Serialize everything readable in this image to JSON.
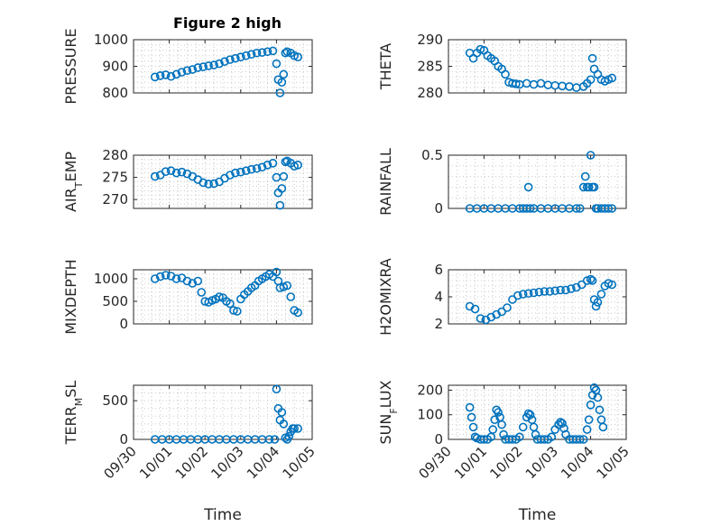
{
  "figure_title": "Figure 2 high",
  "colors": {
    "marker": "#0072BD",
    "axis": "#262626",
    "grid": "#c8c8c8"
  },
  "x_axis": {
    "label": "Time",
    "ticks": [
      "09/30",
      "10/01",
      "10/02",
      "10/03",
      "10/04",
      "10/05"
    ],
    "range_days": [
      0,
      5
    ],
    "tick_rotation_deg": -45
  },
  "chart_data": [
    {
      "type": "scatter",
      "panel": "top-left",
      "title": "Figure 2 high",
      "ylabel": "PRESSURE",
      "ylim": [
        800,
        1000
      ],
      "yticks": [
        800,
        900,
        1000
      ],
      "xticks_shown": false,
      "grid": true,
      "x": [
        0.6,
        0.75,
        0.9,
        1.05,
        1.2,
        1.35,
        1.5,
        1.65,
        1.8,
        1.95,
        2.1,
        2.25,
        2.4,
        2.55,
        2.7,
        2.85,
        3.0,
        3.15,
        3.3,
        3.45,
        3.6,
        3.75,
        3.9,
        4.0,
        4.05,
        4.1,
        4.15,
        4.2,
        4.25,
        4.3,
        4.4,
        4.5,
        4.6
      ],
      "y": [
        860,
        865,
        868,
        862,
        870,
        878,
        884,
        888,
        895,
        898,
        902,
        905,
        910,
        918,
        925,
        930,
        935,
        940,
        945,
        950,
        952,
        955,
        958,
        910,
        850,
        800,
        840,
        870,
        950,
        955,
        950,
        940,
        935
      ]
    },
    {
      "type": "scatter",
      "panel": "top-right",
      "ylabel": "THETA",
      "ylim": [
        280,
        290
      ],
      "yticks": [
        280,
        285,
        290
      ],
      "xticks_shown": false,
      "grid": true,
      "x": [
        0.6,
        0.7,
        0.8,
        0.9,
        1.0,
        1.1,
        1.2,
        1.3,
        1.4,
        1.5,
        1.6,
        1.7,
        1.8,
        1.9,
        2.0,
        2.2,
        2.4,
        2.6,
        2.8,
        3.0,
        3.2,
        3.4,
        3.6,
        3.8,
        3.9,
        4.0,
        4.05,
        4.1,
        4.2,
        4.3,
        4.4,
        4.5,
        4.6
      ],
      "y": [
        287.5,
        286.5,
        287.5,
        288.2,
        288.0,
        287.0,
        286.5,
        286.0,
        285.0,
        284.5,
        283.5,
        282.0,
        281.8,
        281.7,
        281.6,
        281.8,
        281.6,
        281.8,
        281.5,
        281.4,
        281.3,
        281.2,
        281.0,
        281.2,
        281.8,
        282.5,
        286.5,
        284.5,
        283.5,
        282.5,
        282.2,
        282.5,
        282.8
      ]
    },
    {
      "type": "scatter",
      "panel": "row2-left",
      "ylabel": "AIR_TEMP",
      "ylim": [
        268,
        280
      ],
      "yticks": [
        270,
        275,
        280
      ],
      "xticks_shown": false,
      "grid": true,
      "x": [
        0.6,
        0.75,
        0.9,
        1.05,
        1.2,
        1.35,
        1.5,
        1.65,
        1.8,
        1.95,
        2.1,
        2.25,
        2.4,
        2.55,
        2.7,
        2.85,
        3.0,
        3.15,
        3.3,
        3.45,
        3.6,
        3.75,
        3.9,
        4.0,
        4.05,
        4.1,
        4.15,
        4.2,
        4.25,
        4.3,
        4.4,
        4.5,
        4.6
      ],
      "y": [
        275.2,
        275.5,
        276.3,
        276.5,
        276.0,
        276.2,
        275.8,
        275.2,
        274.5,
        273.8,
        273.5,
        273.6,
        274.0,
        274.8,
        275.5,
        276.0,
        276.2,
        276.5,
        276.8,
        277.0,
        277.3,
        277.8,
        278.2,
        275.0,
        271.5,
        268.7,
        272.5,
        275.2,
        278.5,
        278.7,
        278.2,
        277.5,
        277.8
      ]
    },
    {
      "type": "scatter",
      "panel": "row2-right",
      "ylabel": "RAINFALL",
      "ylim": [
        0,
        0.5
      ],
      "yticks": [
        0,
        0.5
      ],
      "xticks_shown": false,
      "grid": true,
      "x": [
        0.6,
        0.8,
        1.0,
        1.2,
        1.4,
        1.6,
        1.8,
        2.0,
        2.1,
        2.2,
        2.25,
        2.3,
        2.4,
        2.6,
        2.8,
        3.0,
        3.2,
        3.4,
        3.6,
        3.7,
        3.8,
        3.85,
        3.9,
        3.95,
        4.0,
        4.05,
        4.1,
        4.15,
        4.2,
        4.3,
        4.4,
        4.5,
        4.6
      ],
      "y": [
        0,
        0,
        0,
        0,
        0,
        0,
        0,
        0,
        0,
        0,
        0.2,
        0,
        0,
        0,
        0,
        0,
        0,
        0,
        0,
        0,
        0.2,
        0.3,
        0.2,
        0.2,
        0.5,
        0.2,
        0.2,
        0,
        0,
        0,
        0,
        0,
        0
      ]
    },
    {
      "type": "scatter",
      "panel": "row3-left",
      "ylabel": "MIXDEPTH",
      "ylim": [
        0,
        1200
      ],
      "yticks": [
        0,
        500,
        1000
      ],
      "xticks_shown": false,
      "grid": true,
      "x": [
        0.6,
        0.75,
        0.9,
        1.05,
        1.2,
        1.35,
        1.5,
        1.65,
        1.8,
        1.9,
        2.0,
        2.1,
        2.2,
        2.3,
        2.4,
        2.5,
        2.6,
        2.7,
        2.8,
        2.9,
        3.0,
        3.1,
        3.2,
        3.3,
        3.4,
        3.5,
        3.6,
        3.7,
        3.8,
        3.9,
        4.0,
        4.05,
        4.1,
        4.2,
        4.3,
        4.4,
        4.5,
        4.6
      ],
      "y": [
        1000,
        1050,
        1080,
        1060,
        1000,
        1020,
        950,
        900,
        950,
        700,
        500,
        480,
        520,
        550,
        600,
        580,
        500,
        450,
        300,
        280,
        550,
        650,
        720,
        800,
        850,
        950,
        1000,
        1050,
        1100,
        1050,
        1150,
        950,
        800,
        820,
        850,
        600,
        300,
        250
      ]
    },
    {
      "type": "scatter",
      "panel": "row3-right",
      "ylabel": "H2OMIXRA",
      "ylim": [
        2,
        6
      ],
      "yticks": [
        2,
        4,
        6
      ],
      "xticks_shown": false,
      "grid": true,
      "x": [
        0.6,
        0.75,
        0.9,
        1.05,
        1.2,
        1.35,
        1.5,
        1.65,
        1.8,
        1.95,
        2.1,
        2.25,
        2.4,
        2.55,
        2.7,
        2.85,
        3.0,
        3.15,
        3.3,
        3.45,
        3.6,
        3.75,
        3.9,
        4.0,
        4.05,
        4.1,
        4.15,
        4.2,
        4.3,
        4.4,
        4.5,
        4.6
      ],
      "y": [
        3.3,
        3.1,
        2.4,
        2.3,
        2.5,
        2.7,
        2.9,
        3.2,
        3.8,
        4.1,
        4.2,
        4.25,
        4.3,
        4.35,
        4.4,
        4.4,
        4.45,
        4.5,
        4.5,
        4.6,
        4.7,
        4.9,
        5.2,
        5.3,
        5.2,
        3.8,
        3.3,
        3.6,
        4.2,
        4.8,
        5.0,
        4.9
      ]
    },
    {
      "type": "scatter",
      "panel": "bottom-left",
      "ylabel": "TERR_MSL",
      "ylim": [
        0,
        700
      ],
      "yticks": [
        0,
        500
      ],
      "xticks_shown": true,
      "xlabel": "Time",
      "grid": true,
      "x": [
        0.6,
        0.8,
        1.0,
        1.2,
        1.4,
        1.6,
        1.8,
        2.0,
        2.2,
        2.4,
        2.6,
        2.8,
        3.0,
        3.2,
        3.4,
        3.6,
        3.8,
        3.95,
        4.0,
        4.05,
        4.1,
        4.15,
        4.2,
        4.25,
        4.3,
        4.35,
        4.4,
        4.45,
        4.5,
        4.6
      ],
      "y": [
        0,
        0,
        0,
        0,
        0,
        0,
        0,
        0,
        0,
        0,
        0,
        0,
        0,
        0,
        0,
        0,
        0,
        0,
        650,
        400,
        250,
        350,
        200,
        20,
        0,
        40,
        100,
        140,
        140,
        140
      ]
    },
    {
      "type": "scatter",
      "panel": "bottom-right",
      "ylabel": "SUN_FLUX",
      "ylim": [
        0,
        220
      ],
      "yticks": [
        0,
        100,
        200
      ],
      "xticks_shown": true,
      "xlabel": "Time",
      "grid": true,
      "x": [
        0.6,
        0.65,
        0.7,
        0.75,
        0.8,
        0.9,
        1.0,
        1.1,
        1.2,
        1.25,
        1.3,
        1.35,
        1.4,
        1.45,
        1.5,
        1.55,
        1.6,
        1.7,
        1.8,
        1.9,
        2.0,
        2.1,
        2.2,
        2.25,
        2.3,
        2.35,
        2.4,
        2.45,
        2.5,
        2.6,
        2.7,
        2.8,
        2.9,
        3.0,
        3.1,
        3.15,
        3.2,
        3.25,
        3.3,
        3.4,
        3.5,
        3.6,
        3.7,
        3.8,
        3.9,
        3.95,
        4.0,
        4.05,
        4.1,
        4.15,
        4.2,
        4.25,
        4.3,
        4.35
      ],
      "y": [
        130,
        90,
        50,
        10,
        5,
        0,
        0,
        0,
        10,
        40,
        80,
        120,
        110,
        90,
        60,
        20,
        0,
        0,
        0,
        0,
        10,
        50,
        90,
        105,
        100,
        80,
        50,
        20,
        0,
        0,
        0,
        0,
        10,
        40,
        60,
        70,
        65,
        45,
        20,
        0,
        0,
        0,
        0,
        0,
        40,
        80,
        140,
        180,
        210,
        200,
        170,
        120,
        80,
        50
      ]
    }
  ]
}
